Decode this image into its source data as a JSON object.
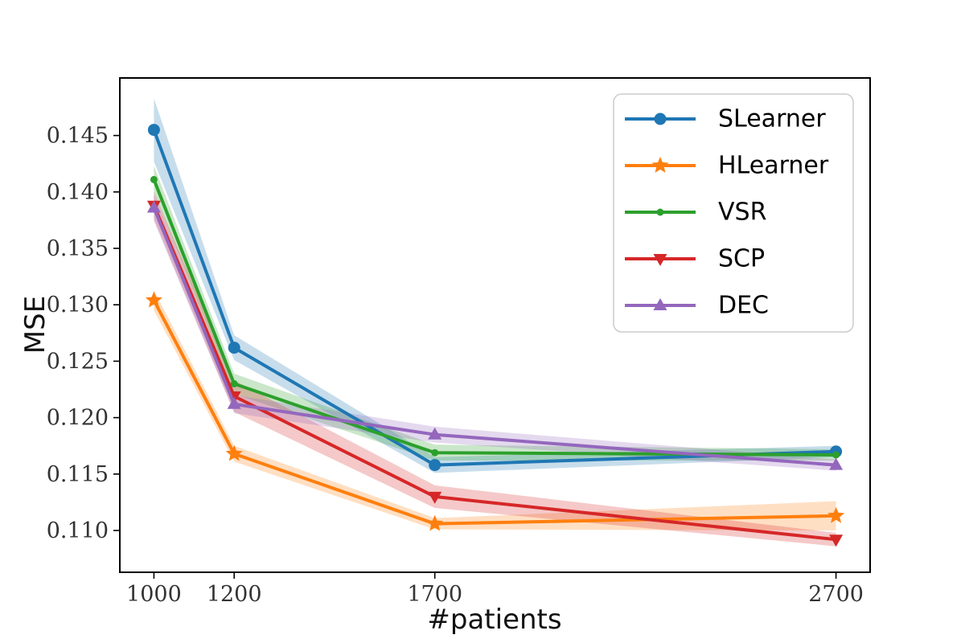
{
  "chart_data": {
    "type": "line",
    "title": "",
    "xlabel": "#patients",
    "ylabel": "MSE",
    "x": [
      1000,
      1200,
      1700,
      2700
    ],
    "xlim": [
      915,
      2785
    ],
    "ylim": [
      0.1063,
      0.1501
    ],
    "grid": false,
    "legend_position": "upper right",
    "xticks": {
      "values": [
        1000,
        1200,
        1700,
        2700
      ],
      "labels": [
        "1000",
        "1200",
        "1700",
        "2700"
      ]
    },
    "yticks": {
      "values": [
        0.11,
        0.115,
        0.12,
        0.125,
        0.13,
        0.135,
        0.14,
        0.145
      ],
      "labels": [
        "0.110",
        "0.115",
        "0.120",
        "0.125",
        "0.130",
        "0.135",
        "0.140",
        "0.145"
      ]
    },
    "series": [
      {
        "name": "SLearner",
        "color": "#1f77b4",
        "marker": "circle",
        "values": [
          0.1455,
          0.1262,
          0.1158,
          0.117
        ],
        "band": [
          0.0028,
          0.0011,
          0.0007,
          0.0005
        ]
      },
      {
        "name": "HLearner",
        "color": "#ff7f0e",
        "marker": "star",
        "values": [
          0.1304,
          0.1168,
          0.1106,
          0.1113
        ],
        "band": [
          0.0009,
          0.0007,
          0.0005,
          0.0013
        ]
      },
      {
        "name": "VSR",
        "color": "#2ca02c",
        "marker": "dot",
        "values": [
          0.1411,
          0.123,
          0.1169,
          0.1167
        ],
        "band": [
          0.0012,
          0.0009,
          0.0007,
          0.0005
        ]
      },
      {
        "name": "SCP",
        "color": "#d62728",
        "marker": "triangle-down",
        "values": [
          0.1388,
          0.1219,
          0.113,
          0.1092
        ],
        "band": [
          0.0012,
          0.0014,
          0.001,
          0.0006
        ]
      },
      {
        "name": "DEC",
        "color": "#9467bd",
        "marker": "triangle-up",
        "values": [
          0.1386,
          0.1212,
          0.1185,
          0.1158
        ],
        "band": [
          0.0012,
          0.0008,
          0.0007,
          0.0005
        ]
      }
    ],
    "band_opacity": 0.25
  }
}
